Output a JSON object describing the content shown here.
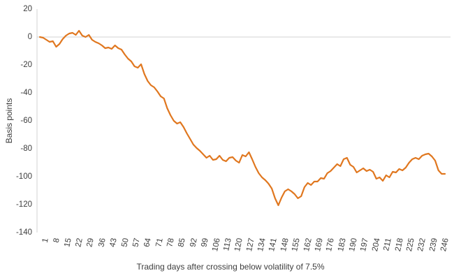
{
  "chart_data": {
    "type": "line",
    "title": "",
    "xlabel": "Trading days after crossing below volatility of 7.5%",
    "ylabel": "Basis points",
    "legend": "none",
    "grid": "horizontal-zero-line-only",
    "ylim": [
      -140,
      20
    ],
    "xlim": [
      1,
      250
    ],
    "yticks": [
      20,
      0,
      -20,
      -40,
      -60,
      -80,
      -100,
      -120,
      -140
    ],
    "xticks": [
      1,
      8,
      15,
      22,
      29,
      36,
      43,
      50,
      57,
      64,
      71,
      78,
      85,
      92,
      99,
      106,
      113,
      120,
      127,
      134,
      141,
      148,
      155,
      162,
      169,
      176,
      183,
      190,
      197,
      204,
      211,
      218,
      225,
      232,
      239,
      246
    ],
    "x": [
      1,
      3,
      5,
      7,
      9,
      11,
      13,
      15,
      17,
      19,
      21,
      23,
      25,
      27,
      29,
      31,
      33,
      35,
      37,
      39,
      41,
      43,
      45,
      47,
      49,
      51,
      53,
      55,
      57,
      59,
      61,
      63,
      65,
      67,
      69,
      71,
      73,
      75,
      77,
      79,
      81,
      83,
      85,
      87,
      89,
      91,
      93,
      95,
      97,
      99,
      101,
      103,
      105,
      107,
      109,
      111,
      113,
      115,
      117,
      119,
      121,
      123,
      125,
      127,
      129,
      131,
      133,
      135,
      137,
      139,
      141,
      143,
      145,
      147,
      149,
      151,
      153,
      155,
      157,
      159,
      161,
      163,
      165,
      167,
      169,
      171,
      173,
      175,
      177,
      179,
      181,
      183,
      185,
      187,
      189,
      191,
      193,
      195,
      197,
      199,
      201,
      203,
      205,
      207,
      209,
      211,
      213,
      215,
      217,
      219,
      221,
      223,
      225,
      227,
      229,
      231,
      233,
      235,
      237,
      239,
      241,
      243,
      245,
      247,
      249
    ],
    "values": [
      0,
      -0.5,
      -2,
      -3.5,
      -3,
      -7,
      -5,
      -1.5,
      1,
      2.5,
      3,
      1.5,
      4.5,
      1,
      0,
      1.5,
      -2,
      -3.5,
      -4.5,
      -6,
      -8,
      -7.5,
      -8.5,
      -6,
      -8,
      -9,
      -12.5,
      -15.5,
      -17.5,
      -21,
      -22,
      -19.5,
      -26.5,
      -31.5,
      -34.5,
      -36,
      -39,
      -42.5,
      -44,
      -51,
      -56,
      -60,
      -62,
      -61,
      -64.5,
      -69,
      -73,
      -77,
      -79.5,
      -81.5,
      -84,
      -86.5,
      -85,
      -88,
      -87.5,
      -85,
      -88,
      -89,
      -86.5,
      -86,
      -88.5,
      -90,
      -84.5,
      -85.5,
      -82.5,
      -87.5,
      -93,
      -97.5,
      -100.5,
      -102.5,
      -105,
      -108.5,
      -115.5,
      -120.5,
      -115,
      -110.5,
      -109,
      -110.5,
      -112.5,
      -115.5,
      -114,
      -107.5,
      -104.5,
      -106,
      -103.5,
      -103.5,
      -101,
      -101.5,
      -97.5,
      -96,
      -93.5,
      -91,
      -92.5,
      -87.5,
      -86.5,
      -91.5,
      -93,
      -97,
      -95.5,
      -94,
      -96,
      -95,
      -96.5,
      -101.5,
      -100.5,
      -103,
      -99,
      -100.5,
      -96.5,
      -97,
      -94.5,
      -95.5,
      -93.5,
      -90,
      -87.5,
      -86.5,
      -87.5,
      -85,
      -84,
      -83.5,
      -85.5,
      -88.5,
      -95.5,
      -98,
      -98
    ],
    "line_color": "#e0771f",
    "axis_color": "#d3d3d3",
    "text_color": "#3d3d3d",
    "background_color": "#ffffff"
  }
}
